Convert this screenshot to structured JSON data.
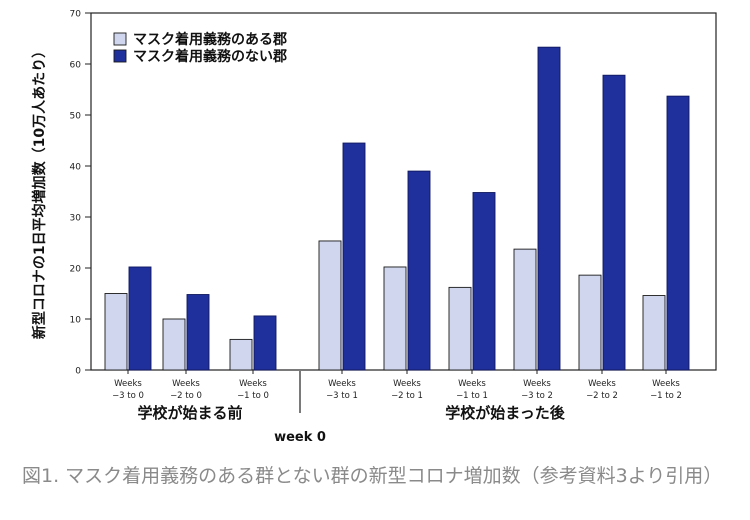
{
  "chart_data": {
    "type": "bar",
    "ylabel": "新型コロナの1日平均増加数（10万人あたり）",
    "ylim": [
      0,
      70
    ],
    "yticks": [
      0,
      10,
      20,
      30,
      40,
      50,
      60,
      70
    ],
    "categories": [
      [
        "Weeks",
        "−3 to 0"
      ],
      [
        "Weeks",
        "−2 to 0"
      ],
      [
        "Weeks",
        "−1 to 0"
      ],
      [
        "Weeks",
        "−3 to 1"
      ],
      [
        "Weeks",
        "−2 to 1"
      ],
      [
        "Weeks",
        "−1 to 1"
      ],
      [
        "Weeks",
        "−3 to 2"
      ],
      [
        "Weeks",
        "−2 to 2"
      ],
      [
        "Weeks",
        "−1 to 2"
      ]
    ],
    "series": [
      {
        "name": "マスク着用義務のある郡",
        "color": "#cfd6ee",
        "values": [
          15,
          10,
          6,
          25.3,
          20.2,
          16.2,
          23.7,
          18.6,
          14.6
        ]
      },
      {
        "name": "マスク着用義務のない郡",
        "color": "#1f2f9c",
        "values": [
          20.2,
          14.8,
          10.6,
          44.5,
          39,
          34.8,
          63.3,
          57.8,
          53.7
        ]
      }
    ],
    "groups": [
      {
        "label": "学校が始まる前",
        "count": 3
      },
      {
        "label": "学校が始まった後",
        "count": 6
      }
    ],
    "divider_label": "week 0",
    "legend_position": "top-left"
  },
  "caption": "図1. マスク着用義務のある群とない群の新型コロナ増加数（参考資料3より引用）"
}
